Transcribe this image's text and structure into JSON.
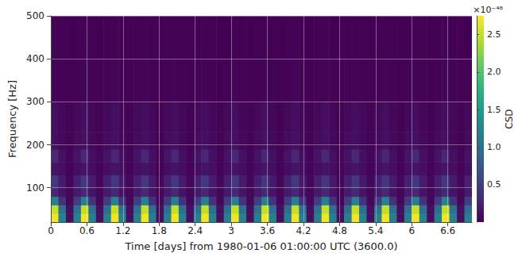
{
  "chart_data": {
    "type": "heatmap",
    "x_label": "Time [days] from 1980-01-06 01:00:00 UTC (3600.0)",
    "y_label": "Frequency [Hz]",
    "xlim": [
      0,
      7
    ],
    "ylim": [
      20,
      500
    ],
    "xticks": [
      0,
      0.6,
      1.2,
      1.8,
      2.4,
      3,
      3.6,
      4.2,
      4.8,
      5.4,
      6,
      6.6
    ],
    "yticks": [
      100,
      200,
      300,
      400,
      500
    ],
    "grid": true,
    "time_edges": [
      0,
      0.125,
      0.25,
      0.375,
      0.5,
      0.625,
      0.75,
      0.875,
      1,
      1.125,
      1.25,
      1.375,
      1.5,
      1.625,
      1.75,
      1.875,
      2,
      2.125,
      2.25,
      2.375,
      2.5,
      2.625,
      2.75,
      2.875,
      3,
      3.125,
      3.25,
      3.375,
      3.5,
      3.625,
      3.75,
      3.875,
      4,
      4.125,
      4.25,
      4.375,
      4.5,
      4.625,
      4.75,
      4.875,
      5,
      5.125,
      5.25,
      5.375,
      5.5,
      5.625,
      5.75,
      5.875,
      6,
      6.125,
      6.25,
      6.375,
      6.5,
      6.625,
      6.75,
      6.875,
      7
    ],
    "frequency_edges": [
      20,
      40,
      60,
      80,
      100,
      130,
      160,
      190,
      230,
      300,
      400,
      500
    ],
    "cells": [
      [
        2.7,
        1.2,
        0.1,
        1.2,
        2.7,
        1.2,
        0.1,
        1.2,
        2.7,
        1.2,
        0.1,
        1.2,
        2.7,
        1.2,
        0.1,
        1.2,
        2.7,
        1.2,
        0.1,
        1.2,
        2.7,
        1.2,
        0.1,
        1.2,
        2.7,
        1.2,
        0.1,
        1.2,
        2.7,
        1.2,
        0.1,
        1.2,
        2.7,
        1.2,
        0.1,
        1.2,
        2.7,
        1.2,
        0.1,
        1.2,
        2.7,
        1.2,
        0.1,
        1.2,
        2.7,
        1.2,
        0.1,
        1.2,
        2.7,
        1.2,
        0.1,
        1.2,
        2.7,
        1.2,
        0.1,
        1.2
      ],
      [
        2.5,
        1.0,
        0.1,
        1.0,
        2.5,
        1.0,
        0.1,
        1.0,
        2.5,
        1.0,
        0.1,
        1.0,
        2.5,
        1.0,
        0.1,
        1.0,
        2.5,
        1.0,
        0.1,
        1.0,
        2.5,
        1.0,
        0.1,
        1.0,
        2.5,
        1.0,
        0.1,
        1.0,
        2.5,
        1.0,
        0.1,
        1.0,
        2.5,
        1.0,
        0.1,
        1.0,
        2.5,
        1.0,
        0.1,
        1.0,
        2.5,
        1.0,
        0.1,
        1.0,
        2.5,
        1.0,
        0.1,
        1.0,
        2.5,
        1.0,
        0.1,
        1.0,
        2.5,
        1.0,
        0.1,
        1.0
      ],
      [
        1.2,
        0.4,
        0.05,
        0.5,
        1.2,
        0.4,
        0.05,
        0.5,
        1.2,
        0.4,
        0.05,
        0.5,
        1.2,
        0.4,
        0.05,
        0.5,
        1.2,
        0.4,
        0.05,
        0.5,
        1.2,
        0.4,
        0.05,
        0.5,
        1.2,
        0.4,
        0.05,
        0.5,
        1.2,
        0.4,
        0.05,
        0.5,
        1.2,
        0.4,
        0.05,
        0.5,
        1.2,
        0.4,
        0.05,
        0.5,
        1.2,
        0.4,
        0.05,
        0.5,
        1.2,
        0.4,
        0.05,
        0.5,
        1.2,
        0.4,
        0.05,
        0.5,
        1.2,
        0.4,
        0.05,
        0.5
      ],
      [
        0.3,
        0.15,
        0.05,
        0.2,
        0.3,
        0.15,
        0.05,
        0.2,
        0.3,
        0.15,
        0.05,
        0.2,
        0.3,
        0.15,
        0.05,
        0.2,
        0.3,
        0.15,
        0.05,
        0.2,
        0.3,
        0.15,
        0.05,
        0.2,
        0.3,
        0.15,
        0.05,
        0.2,
        0.3,
        0.15,
        0.05,
        0.2,
        0.3,
        0.15,
        0.05,
        0.2,
        0.3,
        0.15,
        0.05,
        0.2,
        0.3,
        0.15,
        0.05,
        0.2,
        0.3,
        0.15,
        0.05,
        0.2,
        0.3,
        0.15,
        0.05,
        0.2,
        0.3,
        0.15,
        0.05,
        0.2
      ],
      [
        0.45,
        0.2,
        0.05,
        0.25,
        0.45,
        0.2,
        0.05,
        0.25,
        0.45,
        0.2,
        0.05,
        0.25,
        0.45,
        0.2,
        0.05,
        0.25,
        0.45,
        0.2,
        0.05,
        0.25,
        0.45,
        0.2,
        0.05,
        0.25,
        0.45,
        0.2,
        0.05,
        0.25,
        0.45,
        0.2,
        0.05,
        0.25,
        0.45,
        0.2,
        0.05,
        0.25,
        0.45,
        0.2,
        0.05,
        0.25,
        0.45,
        0.2,
        0.05,
        0.25,
        0.45,
        0.2,
        0.05,
        0.25,
        0.45,
        0.2,
        0.05,
        0.25,
        0.45,
        0.2,
        0.05,
        0.25
      ],
      [
        0.15,
        0.1,
        0.03,
        0.1,
        0.15,
        0.1,
        0.03,
        0.1,
        0.15,
        0.1,
        0.03,
        0.1,
        0.15,
        0.1,
        0.03,
        0.1,
        0.15,
        0.1,
        0.03,
        0.1,
        0.15,
        0.1,
        0.03,
        0.1,
        0.15,
        0.1,
        0.03,
        0.1,
        0.15,
        0.1,
        0.03,
        0.1,
        0.15,
        0.1,
        0.03,
        0.1,
        0.15,
        0.1,
        0.03,
        0.1,
        0.15,
        0.1,
        0.03,
        0.1,
        0.15,
        0.1,
        0.03,
        0.1,
        0.15,
        0.1,
        0.03,
        0.1,
        0.15,
        0.1,
        0.03,
        0.1
      ],
      [
        0.3,
        0.12,
        0.03,
        0.15,
        0.3,
        0.12,
        0.03,
        0.15,
        0.3,
        0.12,
        0.03,
        0.15,
        0.3,
        0.12,
        0.03,
        0.15,
        0.3,
        0.12,
        0.03,
        0.15,
        0.3,
        0.12,
        0.03,
        0.15,
        0.3,
        0.12,
        0.03,
        0.15,
        0.3,
        0.12,
        0.03,
        0.15,
        0.3,
        0.12,
        0.03,
        0.15,
        0.3,
        0.12,
        0.03,
        0.15,
        0.3,
        0.12,
        0.03,
        0.15,
        0.3,
        0.12,
        0.03,
        0.15,
        0.3,
        0.12,
        0.03,
        0.15,
        0.3,
        0.12,
        0.03,
        0.15
      ],
      [
        0.12,
        0.06,
        0.02,
        0.08,
        0.12,
        0.06,
        0.02,
        0.08,
        0.12,
        0.06,
        0.02,
        0.08,
        0.12,
        0.06,
        0.02,
        0.08,
        0.12,
        0.06,
        0.02,
        0.08,
        0.12,
        0.06,
        0.02,
        0.08,
        0.12,
        0.06,
        0.02,
        0.08,
        0.12,
        0.06,
        0.02,
        0.08,
        0.12,
        0.06,
        0.02,
        0.08,
        0.12,
        0.06,
        0.02,
        0.08,
        0.12,
        0.06,
        0.02,
        0.08,
        0.12,
        0.06,
        0.02,
        0.08,
        0.12,
        0.06,
        0.02,
        0.08,
        0.12,
        0.06,
        0.02,
        0.08
      ],
      [
        0.1,
        0.05,
        0.02,
        0.06,
        0.1,
        0.05,
        0.02,
        0.06,
        0.1,
        0.05,
        0.02,
        0.06,
        0.1,
        0.05,
        0.02,
        0.06,
        0.1,
        0.05,
        0.02,
        0.06,
        0.1,
        0.05,
        0.02,
        0.06,
        0.1,
        0.05,
        0.02,
        0.06,
        0.1,
        0.05,
        0.02,
        0.06,
        0.1,
        0.05,
        0.02,
        0.06,
        0.1,
        0.05,
        0.02,
        0.06,
        0.1,
        0.05,
        0.02,
        0.06,
        0.1,
        0.05,
        0.02,
        0.06,
        0.1,
        0.05,
        0.02,
        0.06,
        0.1,
        0.05,
        0.02,
        0.06
      ],
      [
        0.03,
        0.02,
        0.01,
        0.02,
        0.03,
        0.02,
        0.01,
        0.02,
        0.03,
        0.02,
        0.01,
        0.02,
        0.03,
        0.02,
        0.01,
        0.02,
        0.03,
        0.02,
        0.01,
        0.02,
        0.03,
        0.02,
        0.01,
        0.02,
        0.03,
        0.02,
        0.01,
        0.02,
        0.03,
        0.02,
        0.01,
        0.02,
        0.03,
        0.02,
        0.01,
        0.02,
        0.03,
        0.02,
        0.01,
        0.02,
        0.03,
        0.02,
        0.01,
        0.02,
        0.03,
        0.02,
        0.01,
        0.02,
        0.03,
        0.02,
        0.01,
        0.02,
        0.03,
        0.02,
        0.01,
        0.02
      ],
      [
        0.02,
        0.01,
        0.01,
        0.01,
        0.02,
        0.01,
        0.01,
        0.01,
        0.02,
        0.01,
        0.01,
        0.01,
        0.02,
        0.01,
        0.01,
        0.01,
        0.02,
        0.01,
        0.01,
        0.01,
        0.02,
        0.01,
        0.01,
        0.01,
        0.02,
        0.01,
        0.01,
        0.01,
        0.02,
        0.01,
        0.01,
        0.01,
        0.02,
        0.01,
        0.01,
        0.01,
        0.02,
        0.01,
        0.01,
        0.01,
        0.02,
        0.01,
        0.01,
        0.01,
        0.02,
        0.01,
        0.01,
        0.01,
        0.02,
        0.01,
        0.01,
        0.01,
        0.02,
        0.01,
        0.01,
        0.01
      ]
    ],
    "colorbar": {
      "label": "CSD",
      "range": [
        0,
        2.75
      ],
      "ticks": [
        0.5,
        {
          "value": 1,
          "label": "1.0"
        },
        1.5,
        {
          "value": 2,
          "label": "2.0"
        },
        2.5
      ],
      "scale_label": "×10⁻⁴⁸"
    }
  }
}
